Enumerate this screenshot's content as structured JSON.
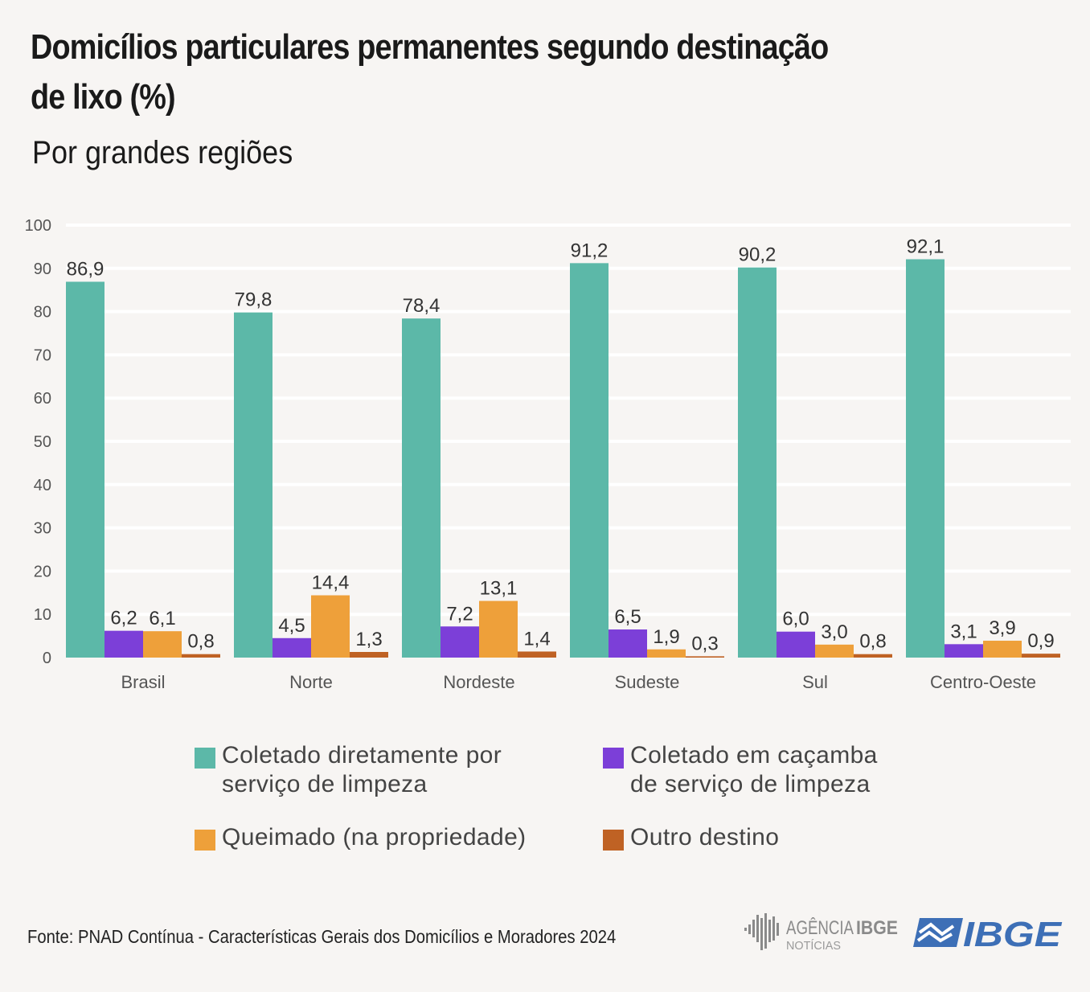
{
  "title": "Domicílios particulares permanentes segundo destinação\nde lixo (%)",
  "subtitle": "Por grandes regiões",
  "chart_data": {
    "type": "bar",
    "title": "Domicílios particulares permanentes segundo destinação de lixo (%)",
    "subtitle": "Por grandes regiões",
    "xlabel": "",
    "ylabel": "",
    "ylim": [
      0,
      100
    ],
    "yticks": [
      0,
      10,
      20,
      30,
      40,
      50,
      60,
      70,
      80,
      90,
      100
    ],
    "grid": true,
    "categories": [
      "Brasil",
      "Norte",
      "Nordeste",
      "Sudeste",
      "Sul",
      "Centro-Oeste"
    ],
    "series": [
      {
        "name": "Coletado diretamente por serviço de limpeza",
        "color": "#5cb8a8",
        "values": [
          86.9,
          79.8,
          78.4,
          91.2,
          90.2,
          92.1
        ],
        "labels": [
          "86,9",
          "79,8",
          "78,4",
          "91,2",
          "90,2",
          "92,1"
        ]
      },
      {
        "name": "Coletado em caçamba de serviço de limpeza",
        "color": "#7c3fd8",
        "values": [
          6.2,
          4.5,
          7.2,
          6.5,
          6.0,
          3.1
        ],
        "labels": [
          "6,2",
          "4,5",
          "7,2",
          "6,5",
          "6,0",
          "3,1"
        ]
      },
      {
        "name": "Queimado (na propriedade)",
        "color": "#eea03a",
        "values": [
          6.1,
          14.4,
          13.1,
          1.9,
          3.0,
          3.9
        ],
        "labels": [
          "6,1",
          "14,4",
          "13,1",
          "1,9",
          "3,0",
          "3,9"
        ]
      },
      {
        "name": "Outro destino",
        "color": "#bf6224",
        "values": [
          0.8,
          1.3,
          1.4,
          0.3,
          0.8,
          0.9
        ],
        "labels": [
          "0,8",
          "1,3",
          "1,4",
          "0,3",
          "0,8",
          "0,9"
        ]
      }
    ],
    "legend_position": "bottom"
  },
  "legend": [
    {
      "label": "Coletado diretamente por\nserviço de limpeza",
      "color": "#5cb8a8"
    },
    {
      "label": "Coletado em caçamba\nde serviço de limpeza",
      "color": "#7c3fd8"
    },
    {
      "label": "Queimado (na propriedade)",
      "color": "#eea03a"
    },
    {
      "label": "Outro destino",
      "color": "#bf6224"
    }
  ],
  "source": "Fonte: PNAD Contínua - Características Gerais dos Domicílios e Moradores 2024",
  "logos": {
    "agencia_main": "AGÊNCIA",
    "agencia_brand": "IBGE",
    "agencia_sub": "NOTÍCIAS",
    "ibge": "IBGE"
  },
  "colors": {
    "background": "#f7f5f3",
    "grid": "#ffffff",
    "axis_text": "#555555",
    "logo_gray": "#8a8a8a",
    "logo_blue": "#3d6fb6"
  }
}
